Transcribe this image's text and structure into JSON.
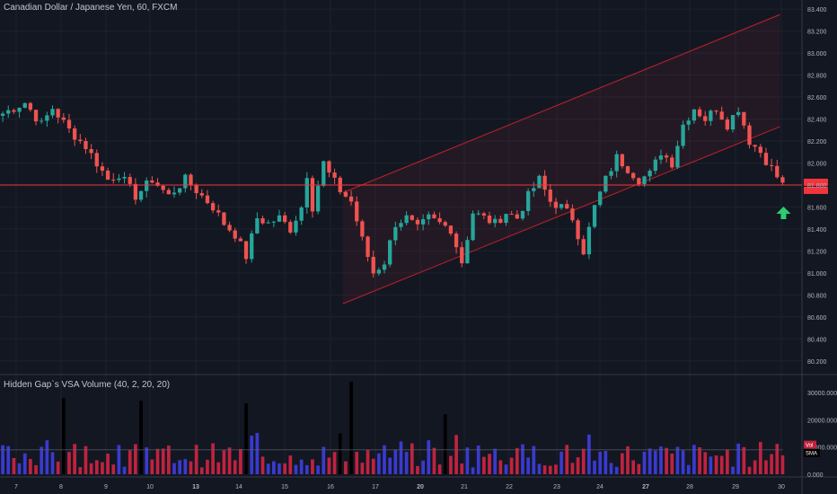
{
  "colors": {
    "background": "#131722",
    "grid": "#1e222d",
    "up_candle": "#26a69a",
    "down_candle": "#ef5350",
    "channel_line": "#c0202a",
    "channel_fill": "#e0334022",
    "price_line": "#f2353d",
    "arrow": "#2ecc71",
    "vol_up": "#3a3ad0",
    "vol_down": "#c0233f",
    "vol_climax": "#000000",
    "axis_text": "#b2b5be"
  },
  "chart_data": [
    {
      "type": "candlestick",
      "title": "Canadian Dollar / Japanese Yen, 60, FXCM",
      "x_tick_labels": [
        "7",
        "8",
        "9",
        "10",
        "13",
        "14",
        "15",
        "16",
        "17",
        "20",
        "21",
        "22",
        "23",
        "24",
        "27",
        "28",
        "29",
        "30"
      ],
      "ylim": [
        80.1,
        83.45
      ],
      "y_tick_labels": [
        "83.400",
        "83.200",
        "83.000",
        "82.800",
        "82.600",
        "82.400",
        "82.200",
        "82.000",
        "81.800",
        "81.600",
        "81.400",
        "81.200",
        "81.000",
        "80.800",
        "80.600",
        "80.400",
        "80.200"
      ],
      "close_path": [
        [
          0,
          82.45
        ],
        [
          4,
          82.55
        ],
        [
          7,
          82.35
        ],
        [
          9,
          82.5
        ],
        [
          12,
          82.3
        ],
        [
          15,
          82.15
        ],
        [
          19,
          81.85
        ],
        [
          21,
          81.9
        ],
        [
          24,
          81.7
        ],
        [
          27,
          81.85
        ],
        [
          30,
          81.7
        ],
        [
          33,
          81.85
        ],
        [
          35,
          81.75
        ],
        [
          38,
          81.6
        ],
        [
          40,
          81.45
        ],
        [
          42,
          81.35
        ],
        [
          44,
          81.15
        ],
        [
          46,
          81.5
        ],
        [
          48,
          81.45
        ],
        [
          50,
          81.5
        ],
        [
          52,
          81.4
        ],
        [
          54,
          81.6
        ],
        [
          55,
          81.9
        ],
        [
          56,
          81.6
        ],
        [
          58,
          82.0
        ],
        [
          59,
          81.9
        ],
        [
          61,
          81.75
        ],
        [
          63,
          81.65
        ],
        [
          65,
          81.3
        ],
        [
          67,
          81.0
        ],
        [
          69,
          81.1
        ],
        [
          71,
          81.45
        ],
        [
          73,
          81.5
        ],
        [
          75,
          81.4
        ],
        [
          77,
          81.5
        ],
        [
          79,
          81.45
        ],
        [
          81,
          81.4
        ],
        [
          83,
          81.1
        ],
        [
          85,
          81.55
        ],
        [
          87,
          81.5
        ],
        [
          89,
          81.45
        ],
        [
          91,
          81.55
        ],
        [
          93,
          81.5
        ],
        [
          95,
          81.7
        ],
        [
          97,
          81.85
        ],
        [
          99,
          81.65
        ],
        [
          101,
          81.6
        ],
        [
          103,
          81.5
        ],
        [
          105,
          81.2
        ],
        [
          107,
          81.6
        ],
        [
          109,
          81.85
        ],
        [
          111,
          82.05
        ],
        [
          113,
          81.95
        ],
        [
          115,
          81.85
        ],
        [
          117,
          81.9
        ],
        [
          119,
          82.1
        ],
        [
          121,
          82.0
        ],
        [
          123,
          82.35
        ],
        [
          125,
          82.5
        ],
        [
          127,
          82.4
        ],
        [
          129,
          82.5
        ],
        [
          131,
          82.35
        ],
        [
          133,
          82.5
        ],
        [
          135,
          82.2
        ],
        [
          137,
          82.1
        ],
        [
          139,
          81.95
        ],
        [
          141,
          81.8
        ]
      ],
      "current_price": 81.8,
      "channel": {
        "lower": [
          [
            61.5,
            80.72
          ],
          [
            140.5,
            82.33
          ]
        ],
        "upper": [
          [
            61.5,
            81.73
          ],
          [
            140.5,
            83.35
          ]
        ]
      },
      "signal": "up-arrow"
    },
    {
      "type": "bar",
      "title": "Hidden Gap`s VSA Volume (40, 2, 20, 20)",
      "ylim": [
        0,
        33000
      ],
      "y_tick_labels": [
        "30000.000",
        "20000.000",
        "10000.000",
        "0.000"
      ],
      "legend_marker": "Vol",
      "sma_label": "SMA",
      "climax_bars": [
        [
          11,
          28000
        ],
        [
          25,
          27000
        ],
        [
          63,
          34000
        ],
        [
          44,
          26000
        ],
        [
          80,
          22000
        ],
        [
          61,
          15000
        ]
      ],
      "sma_level": 9000
    }
  ]
}
